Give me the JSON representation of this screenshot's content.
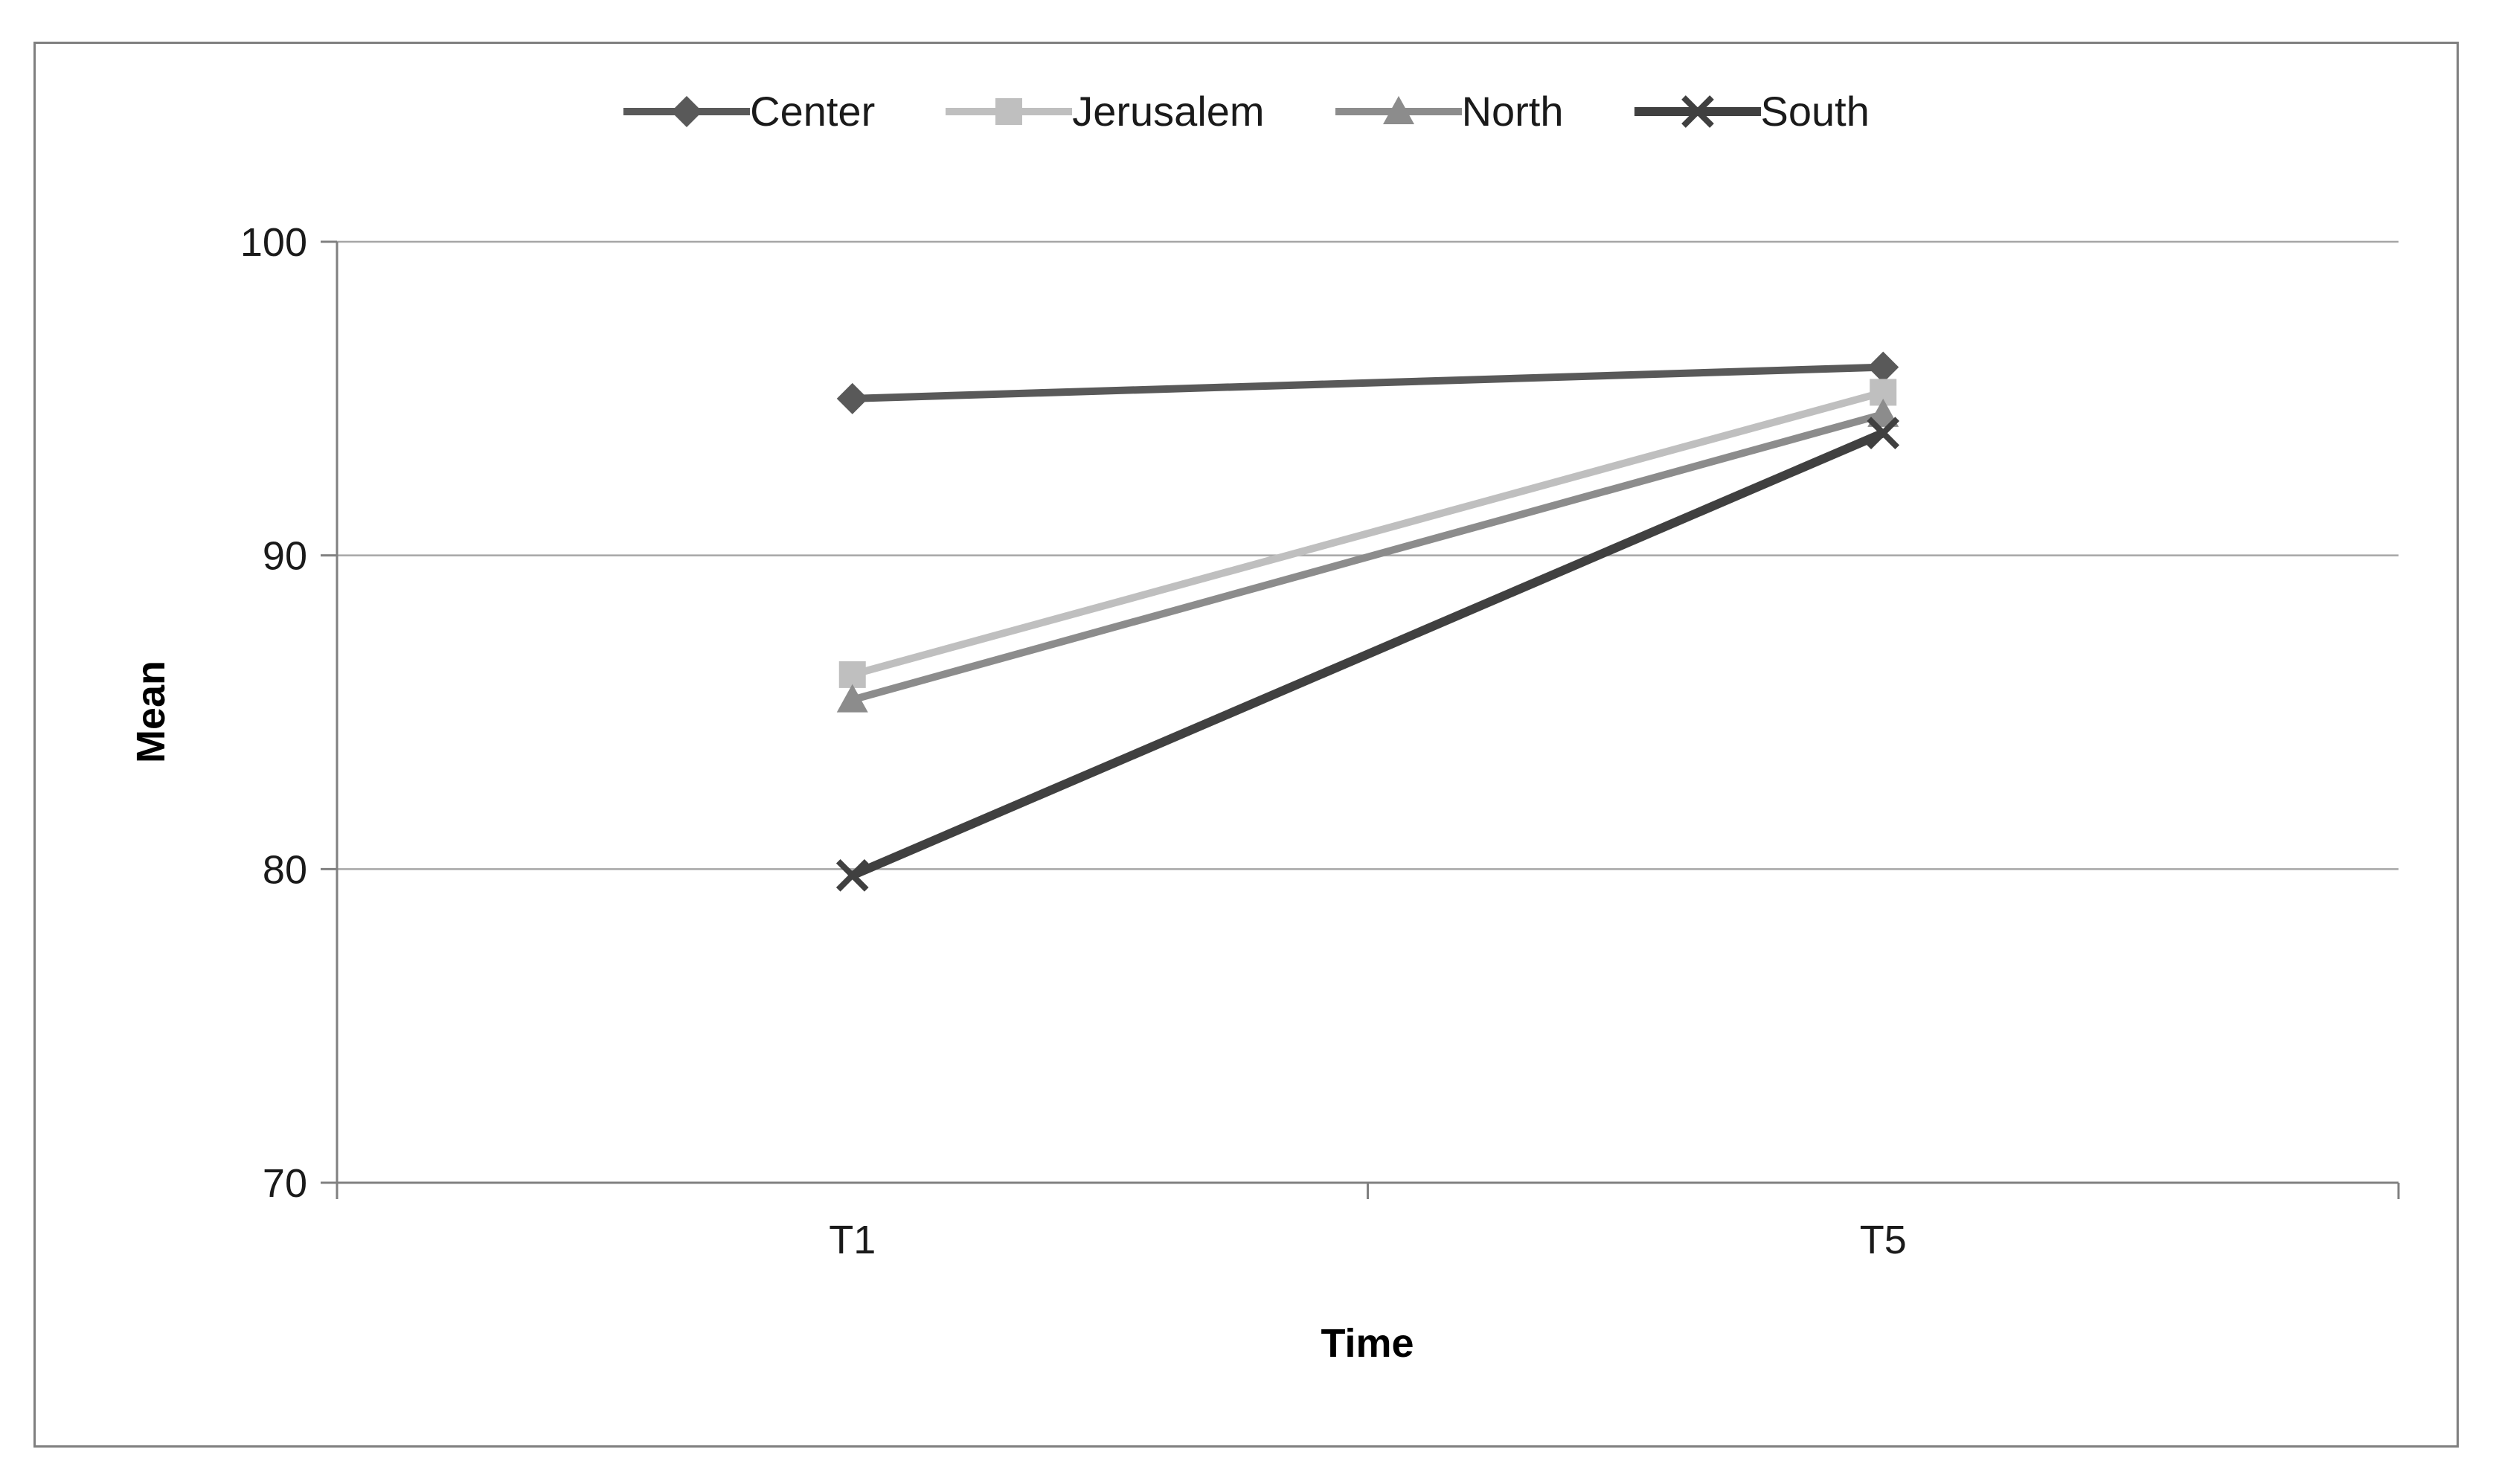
{
  "chart_data": {
    "type": "line",
    "title": "",
    "categories": [
      "T1",
      "T5"
    ],
    "series": [
      {
        "name": "Center",
        "values": [
          95.0,
          96.0
        ],
        "color": "#595959",
        "marker": "diamond",
        "line_width": 10
      },
      {
        "name": "Jerusalem",
        "values": [
          86.2,
          95.2
        ],
        "color": "#bfbfbf",
        "marker": "square",
        "line_width": 10
      },
      {
        "name": "North",
        "values": [
          85.4,
          94.5
        ],
        "color": "#8c8c8c",
        "marker": "triangle",
        "line_width": 10
      },
      {
        "name": "South",
        "values": [
          79.8,
          93.9
        ],
        "color": "#404040",
        "marker": "x",
        "line_width": 12
      }
    ],
    "xlabel": "Time",
    "ylabel": "Mean",
    "ylim": [
      70,
      100
    ],
    "yticks": [
      70,
      80,
      90,
      100
    ],
    "grid": true,
    "legend_position": "top",
    "colors": {
      "gridline": "#a6a6a6",
      "axis": "#808080",
      "text": "#1a1a1a",
      "frame_border": "#7f7f7f",
      "background": "#ffffff"
    }
  }
}
